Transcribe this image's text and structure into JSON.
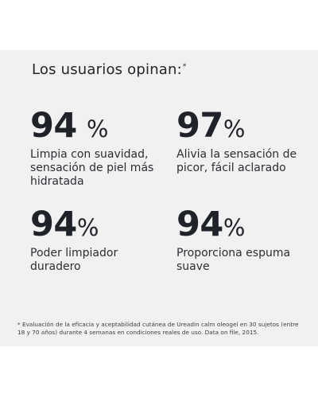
{
  "heading": {
    "text": "Los usuarios opinan:",
    "marker": "*"
  },
  "stats": [
    {
      "value": "94",
      "unit": "%",
      "description": "Limpia con suavidad, sensación de piel más hidratada"
    },
    {
      "value": "97",
      "unit": "%",
      "description": "Alivia la sensación de picor, fácil aclarado"
    },
    {
      "value": "94",
      "unit": "%",
      "description": "Poder limpiador duradero"
    },
    {
      "value": "94",
      "unit": "%",
      "description": "Proporciona espuma suave"
    }
  ],
  "footnote": "* Evaluación de la eficacia y aceptabilidad cutánea de Ureadin calm oleogel en 30 sujetos (entre 18 y 70 años) durante 4 semanas en condiciones reales de uso. Data on file, 2015.",
  "colors": {
    "panel_background": "#f1f1f1",
    "text": "#1f2329"
  }
}
